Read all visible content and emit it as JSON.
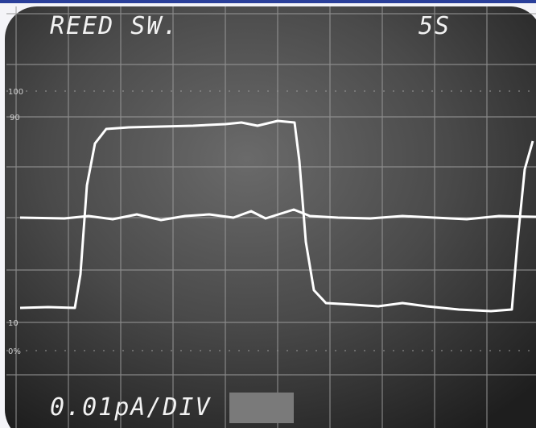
{
  "header": {
    "title": "REED SW.",
    "timebase": "5S"
  },
  "footer": {
    "scale": "0.01pA/DIV"
  },
  "graticule": {
    "labels": [
      "100",
      "90",
      "10",
      "0%"
    ]
  }
}
